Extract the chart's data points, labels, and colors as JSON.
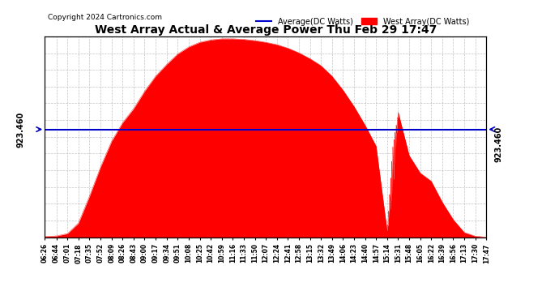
{
  "title": "West Array Actual & Average Power Thu Feb 29 17:47",
  "copyright": "Copyright 2024 Cartronics.com",
  "legend_average": "Average(DC Watts)",
  "legend_west": "West Array(DC Watts)",
  "ymin": 0.0,
  "ymax": 1719.6,
  "yticks": [
    0.0,
    143.3,
    286.6,
    429.9,
    573.2,
    716.5,
    859.8,
    1003.1,
    1146.4,
    1289.7,
    1433.0,
    1576.3,
    1719.6
  ],
  "average_value": 923.46,
  "left_ylabel": "923.460",
  "bg_color": "#ffffff",
  "grid_color": "#aaaaaa",
  "fill_color": "#ff0000",
  "avg_line_color": "#0000cd",
  "title_color": "#000000",
  "copyright_color": "#000000",
  "legend_avg_color": "#0000cd",
  "legend_west_color": "#ff0000",
  "xtick_labels": [
    "06:26",
    "06:44",
    "07:01",
    "07:18",
    "07:35",
    "07:52",
    "08:09",
    "08:26",
    "08:43",
    "09:00",
    "09:17",
    "09:34",
    "09:51",
    "10:08",
    "10:25",
    "10:42",
    "10:59",
    "11:16",
    "11:33",
    "11:50",
    "12:07",
    "12:24",
    "12:41",
    "12:58",
    "13:15",
    "13:32",
    "13:49",
    "14:06",
    "14:23",
    "14:40",
    "14:57",
    "15:14",
    "15:31",
    "15:48",
    "16:05",
    "16:22",
    "16:39",
    "16:56",
    "17:13",
    "17:30",
    "17:47"
  ],
  "power_values": [
    5,
    10,
    30,
    120,
    350,
    600,
    820,
    980,
    1100,
    1250,
    1380,
    1480,
    1570,
    1630,
    1670,
    1690,
    1700,
    1700,
    1695,
    1685,
    1670,
    1650,
    1620,
    1580,
    1530,
    1470,
    1380,
    1260,
    1120,
    960,
    780,
    50,
    1070,
    700,
    550,
    480,
    300,
    150,
    40,
    8,
    0
  ]
}
